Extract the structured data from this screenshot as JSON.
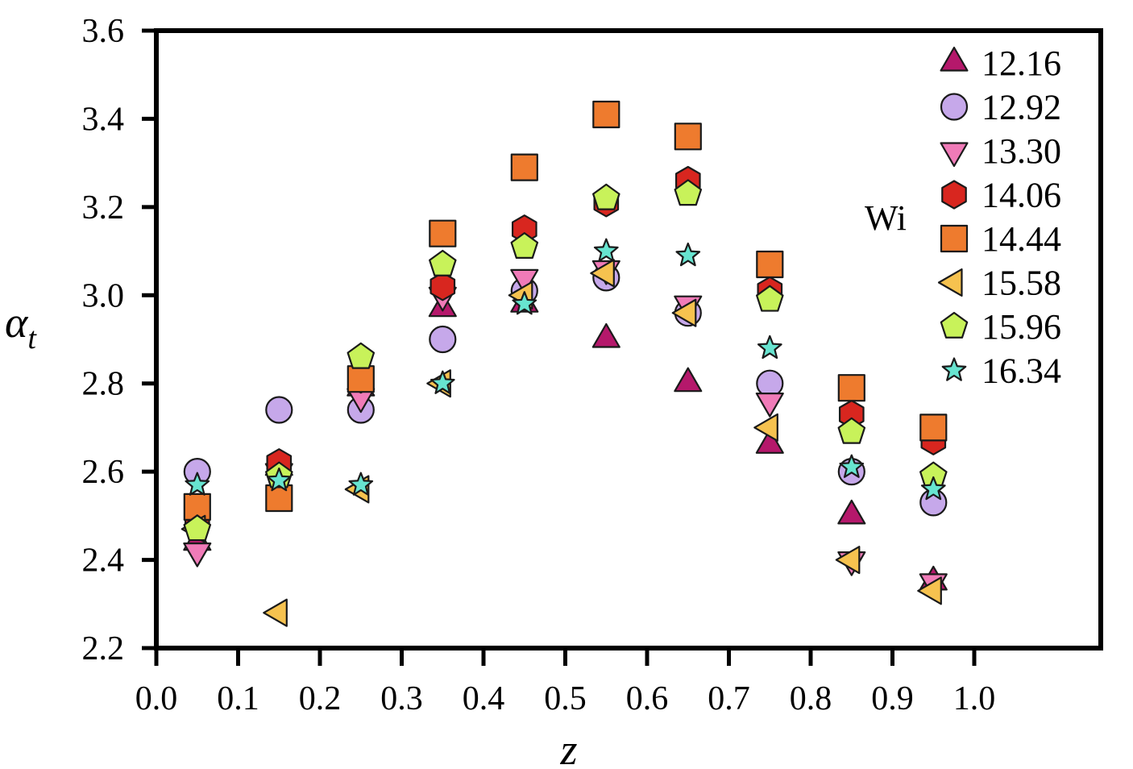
{
  "chart_data": {
    "type": "scatter",
    "title": "",
    "xlabel": "z",
    "ylabel": "α",
    "ylabel_subscript": "t",
    "xlim": [
      0.0,
      1.15
    ],
    "ylim": [
      2.2,
      3.6
    ],
    "x_ticks": [
      0.0,
      0.1,
      0.2,
      0.3,
      0.4,
      0.5,
      0.6,
      0.7,
      0.8,
      0.9,
      1.0
    ],
    "x_tick_labels": [
      "0.0",
      "0.1",
      "0.2",
      "0.3",
      "0.4",
      "0.5",
      "0.6",
      "0.7",
      "0.8",
      "0.9",
      "1.0"
    ],
    "y_ticks": [
      2.2,
      2.4,
      2.6,
      2.8,
      3.0,
      3.2,
      3.4,
      3.6
    ],
    "y_tick_labels": [
      "2.2",
      "2.4",
      "2.6",
      "2.8",
      "3.0",
      "3.2",
      "3.4",
      "3.6"
    ],
    "grid": false,
    "legend_title": "Wi",
    "legend_position": "top-right",
    "x": [
      0.05,
      0.15,
      0.25,
      0.35,
      0.45,
      0.55,
      0.65,
      0.75,
      0.85,
      0.95
    ],
    "series": [
      {
        "name": "12.16",
        "marker": "triangle-up",
        "color": "#b5186b",
        "values": [
          2.44,
          2.61,
          2.79,
          2.97,
          2.98,
          2.9,
          2.8,
          2.66,
          2.5,
          2.35
        ]
      },
      {
        "name": "12.92",
        "marker": "circle",
        "color": "#c6a8ea",
        "values": [
          2.6,
          2.74,
          2.74,
          2.9,
          3.01,
          3.04,
          2.96,
          2.8,
          2.6,
          2.53
        ]
      },
      {
        "name": "13.30",
        "marker": "triangle-down",
        "color": "#f07bb8",
        "values": [
          2.42,
          2.6,
          2.77,
          3.0,
          3.04,
          3.06,
          2.98,
          2.76,
          2.4,
          2.35
        ]
      },
      {
        "name": "14.06",
        "marker": "hexagon",
        "color": "#d8261f",
        "values": [
          2.49,
          2.62,
          2.81,
          3.02,
          3.15,
          3.21,
          3.26,
          3.01,
          2.73,
          2.67
        ]
      },
      {
        "name": "14.44",
        "marker": "square",
        "color": "#ee7b2e",
        "values": [
          2.52,
          2.54,
          2.81,
          3.14,
          3.29,
          3.41,
          3.36,
          3.07,
          2.79,
          2.7
        ]
      },
      {
        "name": "15.58",
        "marker": "triangle-left",
        "color": "#f6c24f",
        "values": [
          2.47,
          2.28,
          2.56,
          2.8,
          3.0,
          3.05,
          2.96,
          2.7,
          2.4,
          2.33
        ]
      },
      {
        "name": "15.96",
        "marker": "pentagon",
        "color": "#c8f25a",
        "values": [
          2.47,
          2.59,
          2.86,
          3.07,
          3.11,
          3.22,
          3.23,
          2.99,
          2.69,
          2.59
        ]
      },
      {
        "name": "16.34",
        "marker": "star",
        "color": "#67e4d0",
        "values": [
          2.57,
          2.58,
          2.57,
          2.8,
          2.98,
          3.1,
          3.09,
          2.88,
          2.61,
          2.56
        ]
      }
    ]
  }
}
